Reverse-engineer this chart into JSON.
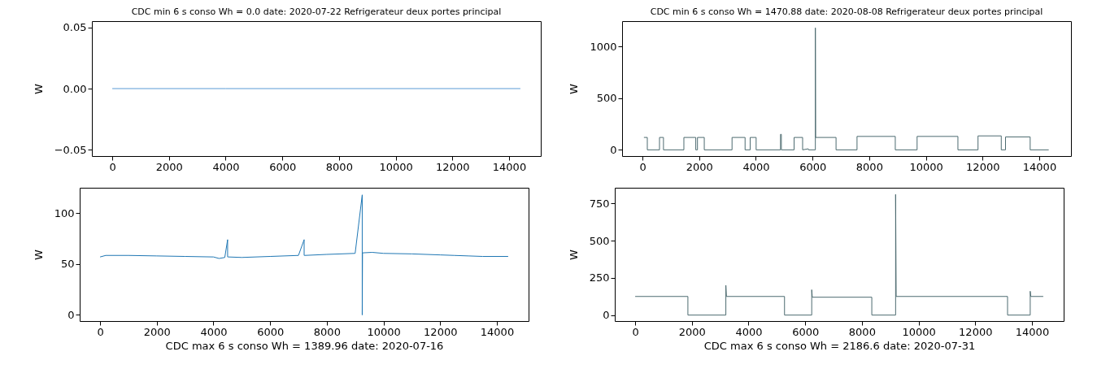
{
  "chart_data": [
    {
      "type": "line",
      "title": "CDC min 6 s conso Wh = 0.0 date: 2020-07-22 Refrigerateur deux portes principal",
      "ylabel": "W",
      "grid": false,
      "x": [
        0,
        4000,
        8000,
        14400
      ],
      "values": [
        0,
        0,
        0,
        0
      ],
      "color": "#5b9bd5",
      "xlim": [
        -720,
        15120
      ],
      "xticks": [
        0,
        2000,
        4000,
        6000,
        8000,
        10000,
        12000,
        14000
      ],
      "ylim": [
        -0.055,
        0.055
      ],
      "yticks": [
        {
          "value": -0.05,
          "label": "−0.05"
        },
        {
          "value": 0,
          "label": "0.00"
        },
        {
          "value": 0.05,
          "label": "0.05"
        }
      ]
    },
    {
      "type": "line",
      "title": "CDC min 6 s conso Wh = 1470.88 date: 2020-08-08 Refrigerateur deux portes principal",
      "ylabel": "W",
      "grid": false,
      "x": [
        50,
        170,
        170,
        600,
        600,
        740,
        740,
        1460,
        1460,
        1880,
        1880,
        1940,
        1940,
        2180,
        2180,
        3160,
        3160,
        3620,
        3620,
        3800,
        3800,
        4010,
        4010,
        4870,
        4870,
        4900,
        4900,
        5350,
        5350,
        5650,
        5650,
        5850,
        5860,
        6100,
        6100,
        6110,
        6830,
        6830,
        7570,
        7570,
        8920,
        8920,
        9690,
        9690,
        11130,
        11130,
        11840,
        11840,
        12660,
        12660,
        12810,
        12810,
        13680,
        13680,
        14335
      ],
      "values": [
        120,
        120,
        0,
        0,
        120,
        120,
        0,
        0,
        120,
        120,
        0,
        0,
        120,
        120,
        0,
        0,
        120,
        120,
        0,
        0,
        120,
        120,
        0,
        0,
        150,
        150,
        0,
        0,
        120,
        120,
        0,
        10,
        0,
        0,
        1180,
        120,
        120,
        0,
        0,
        130,
        130,
        0,
        0,
        130,
        130,
        0,
        0,
        135,
        135,
        0,
        0,
        125,
        125,
        0,
        0
      ],
      "color": "#4d6b70",
      "xlim": [
        -720,
        15120
      ],
      "xticks": [
        0,
        2000,
        4000,
        6000,
        8000,
        10000,
        12000,
        14000
      ],
      "ylim": [
        -60,
        1245
      ],
      "yticks": [
        0,
        500,
        1000
      ]
    },
    {
      "type": "line",
      "xlabel": "CDC max 6 s conso Wh = 1389.96 date: 2020-07-16",
      "ylabel": "W",
      "grid": false,
      "x": [
        0,
        200,
        1000,
        2000,
        3000,
        4000,
        4200,
        4400,
        4500,
        4500,
        4520,
        5000,
        6000,
        7000,
        7200,
        7200,
        7220,
        8000,
        9000,
        9250,
        9250,
        9260,
        9260,
        9600,
        10000,
        11000,
        12000,
        12500,
        13000,
        13500,
        14400
      ],
      "values": [
        57,
        58.5,
        58.5,
        58,
        57.5,
        57,
        55.5,
        56.5,
        74,
        57,
        57,
        56.5,
        57.5,
        58.5,
        74,
        58.5,
        58.5,
        59.5,
        60.5,
        118,
        0,
        60,
        61,
        61.5,
        60.5,
        60,
        59,
        58.5,
        58,
        57.5,
        57.5
      ],
      "color": "#1f77b4",
      "xlim": [
        -720,
        15120
      ],
      "xticks": [
        0,
        2000,
        4000,
        6000,
        8000,
        10000,
        12000,
        14000
      ],
      "ylim": [
        -6,
        125
      ],
      "yticks": [
        0,
        50,
        100
      ]
    },
    {
      "type": "line",
      "xlabel": "CDC max 6 s conso Wh = 2186.6 date: 2020-07-31",
      "ylabel": "W",
      "grid": false,
      "x": [
        0,
        1860,
        1860,
        3200,
        3200,
        3220,
        5270,
        5270,
        6230,
        6230,
        6250,
        8350,
        8350,
        9190,
        9190,
        9210,
        13140,
        13140,
        13940,
        13940,
        13960,
        14400
      ],
      "values": [
        125,
        125,
        0,
        0,
        200,
        125,
        125,
        0,
        0,
        170,
        120,
        120,
        0,
        0,
        810,
        125,
        125,
        0,
        0,
        160,
        125,
        125
      ],
      "color": "#4d6b70",
      "xlim": [
        -720,
        15120
      ],
      "xticks": [
        0,
        2000,
        4000,
        6000,
        8000,
        10000,
        12000,
        14000
      ],
      "ylim": [
        -40,
        855
      ],
      "yticks": [
        0,
        250,
        500,
        750
      ]
    }
  ]
}
